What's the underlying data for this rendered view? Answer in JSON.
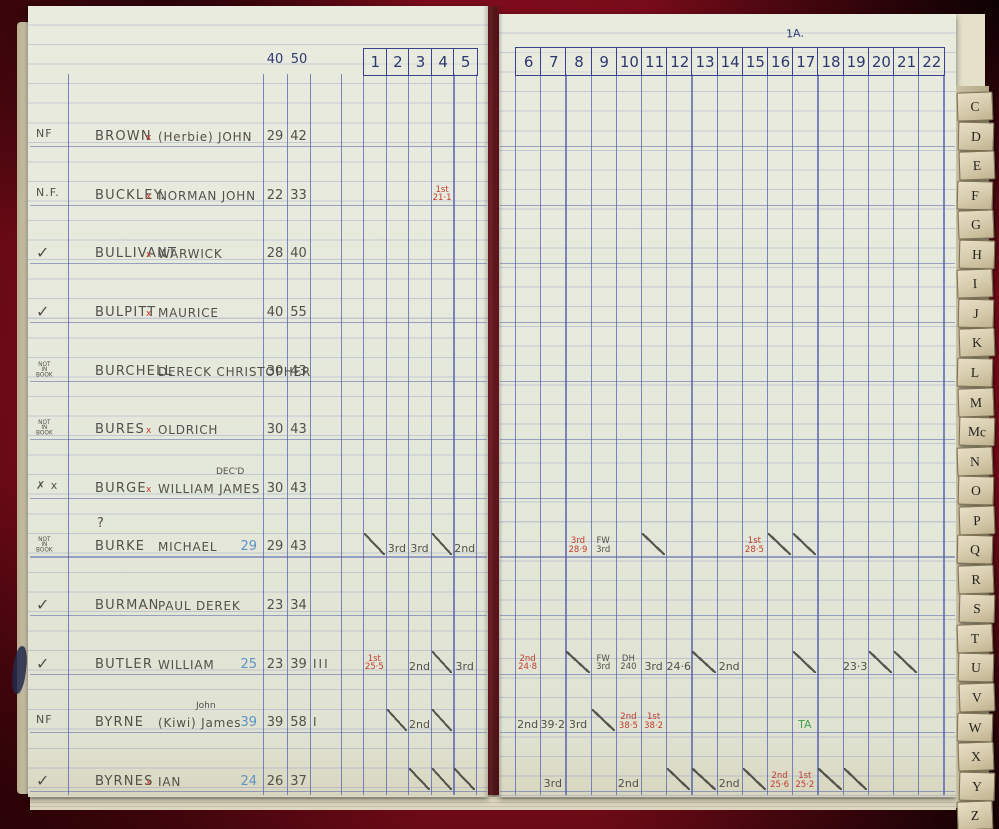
{
  "page_label": "1A.",
  "header": {
    "left_numbers": [
      "40",
      "50"
    ],
    "left_columns": [
      "1",
      "2",
      "3",
      "4",
      "5"
    ],
    "right_columns": [
      "6",
      "7",
      "8",
      "9",
      "10",
      "11",
      "12",
      "13",
      "14",
      "15",
      "16",
      "17",
      "18",
      "19",
      "20",
      "21",
      "22"
    ]
  },
  "tabs": [
    "C",
    "D",
    "E",
    "F",
    "G",
    "H",
    "I",
    "J",
    "K",
    "L",
    "M",
    "Mc",
    "N",
    "O",
    "P",
    "Q",
    "R",
    "S",
    "T",
    "U",
    "V",
    "W",
    "X",
    "Y",
    "Z"
  ],
  "colors": {
    "pencil": "#52504a",
    "red_ink": "#c13b2f",
    "blue_ink": "#5f93c4",
    "green_ink": "#43a046",
    "pen_ink": "#2e3a72",
    "cover": "#8c0e20"
  },
  "rows": [
    {
      "status": "NF",
      "surname": "BROWN",
      "xmark": "x",
      "given": "(Herbie) JOHN",
      "n1": "29",
      "n2": "42",
      "marks": []
    },
    {
      "status": "N.F.",
      "surname": "BUCKLEY.",
      "xmark": "x",
      "given": "NORMAN JOHN",
      "n1": "22",
      "n2": "33",
      "marks": [
        {
          "c": 4,
          "lines": [
            "1st",
            "21·1"
          ],
          "color": "red"
        }
      ]
    },
    {
      "status": "✓",
      "surname": "BULLIVANT",
      "xmark": "x",
      "given": "WARWICK",
      "n1": "28",
      "n2": "40",
      "marks": []
    },
    {
      "status": "✓",
      "surname": "BULPITT",
      "xmark": "x",
      "given": "MAURICE",
      "n1": "40",
      "n2": "55",
      "marks": []
    },
    {
      "status": "NOT IN BOOK",
      "surname": "BURCHELL",
      "xmark": "",
      "given": "DERECK CHRISTOPHER",
      "n1": "30",
      "n2": "43",
      "marks": []
    },
    {
      "status": "NOT IN BOOK",
      "surname": "BURES",
      "xmark": "x",
      "given": "OLDRICH",
      "n1": "30",
      "n2": "43",
      "marks": []
    },
    {
      "status": "✗ x",
      "surname": "BURGE",
      "xmark": "x",
      "given": "WILLIAM JAMES",
      "note": "DEC'D",
      "n1": "30",
      "n2": "43",
      "marks": []
    },
    {
      "status": "NOT IN BOOK",
      "query": "?",
      "surname": "BURKE",
      "xmark": "",
      "given": "MICHAEL",
      "blue": "29",
      "n1": "29",
      "n2": "43",
      "marks": [
        {
          "c": 1,
          "slash": true
        },
        {
          "c": 2,
          "text": "3rd"
        },
        {
          "c": 3,
          "text": "3rd"
        },
        {
          "c": 4,
          "slash": true
        },
        {
          "c": 5,
          "text": "2nd"
        },
        {
          "c": 8,
          "lines": [
            "3rd",
            "28·9"
          ],
          "color": "red"
        },
        {
          "c": 9,
          "lines": [
            "FW",
            "3rd"
          ]
        },
        {
          "c": 11,
          "slash": true
        },
        {
          "c": 15,
          "lines": [
            "1st",
            "28·5"
          ],
          "color": "red"
        },
        {
          "c": 16,
          "slash": true
        },
        {
          "c": 17,
          "slash": true
        }
      ]
    },
    {
      "status": "✓",
      "surname": "BURMAN",
      "xmark": ".",
      "given": "PAUL DEREK",
      "n1": "23",
      "n2": "34",
      "marks": []
    },
    {
      "status": "✓",
      "surname": "BUTLER",
      "xmark": "",
      "given": "WILLIAM",
      "blue": "25",
      "n1": "23",
      "n2": "39",
      "tally": "III",
      "marks": [
        {
          "c": 1,
          "lines": [
            "1st",
            "25·5"
          ],
          "color": "red"
        },
        {
          "c": 3,
          "text": "2nd"
        },
        {
          "c": 4,
          "slash": true
        },
        {
          "c": 5,
          "text": "3rd"
        },
        {
          "c": 6,
          "lines": [
            "2nd",
            "24·8"
          ],
          "color": "red"
        },
        {
          "c": 8,
          "slash": true
        },
        {
          "c": 9,
          "lines": [
            "FW",
            "3rd"
          ]
        },
        {
          "c": 10,
          "lines": [
            "DH",
            "240"
          ]
        },
        {
          "c": 11,
          "text": "3rd"
        },
        {
          "c": 12,
          "text": "24·6"
        },
        {
          "c": 13,
          "slash": true
        },
        {
          "c": 14,
          "text": "2nd"
        },
        {
          "c": 17,
          "slash": true
        },
        {
          "c": 19,
          "text": "23·3"
        },
        {
          "c": 20,
          "slash": true
        },
        {
          "c": 21,
          "slash": true
        }
      ]
    },
    {
      "status": "NF",
      "surname": "BYRNE",
      "xmark": "",
      "given": "(Kiwi) James",
      "note": "John",
      "blue": "39",
      "n1": "39",
      "n2": "58",
      "tally": "I",
      "marks": [
        {
          "c": 2,
          "slash": true
        },
        {
          "c": 3,
          "text": "2nd"
        },
        {
          "c": 4,
          "slash": true
        },
        {
          "c": 6,
          "text": "2nd"
        },
        {
          "c": 7,
          "text": "39·2"
        },
        {
          "c": 8,
          "text": "3rd"
        },
        {
          "c": 9,
          "slash": true
        },
        {
          "c": 10,
          "lines": [
            "2nd",
            "38·5"
          ],
          "color": "red"
        },
        {
          "c": 11,
          "lines": [
            "1st",
            "38·2"
          ],
          "color": "red"
        },
        {
          "c": 17,
          "text": "TA",
          "color": "green"
        }
      ]
    },
    {
      "status": "✓",
      "surname": "BYRNES",
      "xmark": "x",
      "given": "IAN",
      "blue": "24",
      "n1": "26",
      "n2": "37",
      "marks": [
        {
          "c": 3,
          "slash": true
        },
        {
          "c": 4,
          "slash": true
        },
        {
          "c": 5,
          "slash": true
        },
        {
          "c": 7,
          "text": "3rd"
        },
        {
          "c": 10,
          "text": "2nd"
        },
        {
          "c": 12,
          "slash": true
        },
        {
          "c": 13,
          "slash": true
        },
        {
          "c": 14,
          "text": "2nd"
        },
        {
          "c": 15,
          "slash": true
        },
        {
          "c": 16,
          "lines": [
            "2nd",
            "25·6"
          ],
          "color": "red"
        },
        {
          "c": 17,
          "lines": [
            "1st",
            "25·2"
          ],
          "color": "red"
        },
        {
          "c": 18,
          "slash": true
        },
        {
          "c": 19,
          "slash": true
        }
      ]
    }
  ]
}
